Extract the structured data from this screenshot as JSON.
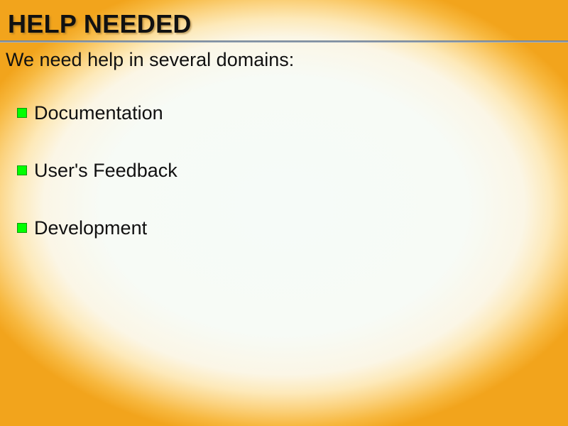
{
  "slide": {
    "title": "HELP NEEDED",
    "intro": "We need help in several domains:",
    "bullet_color": "#00ff00",
    "items": [
      {
        "label": "Documentation"
      },
      {
        "label": "User's Feedback"
      },
      {
        "label": "Development"
      }
    ]
  }
}
